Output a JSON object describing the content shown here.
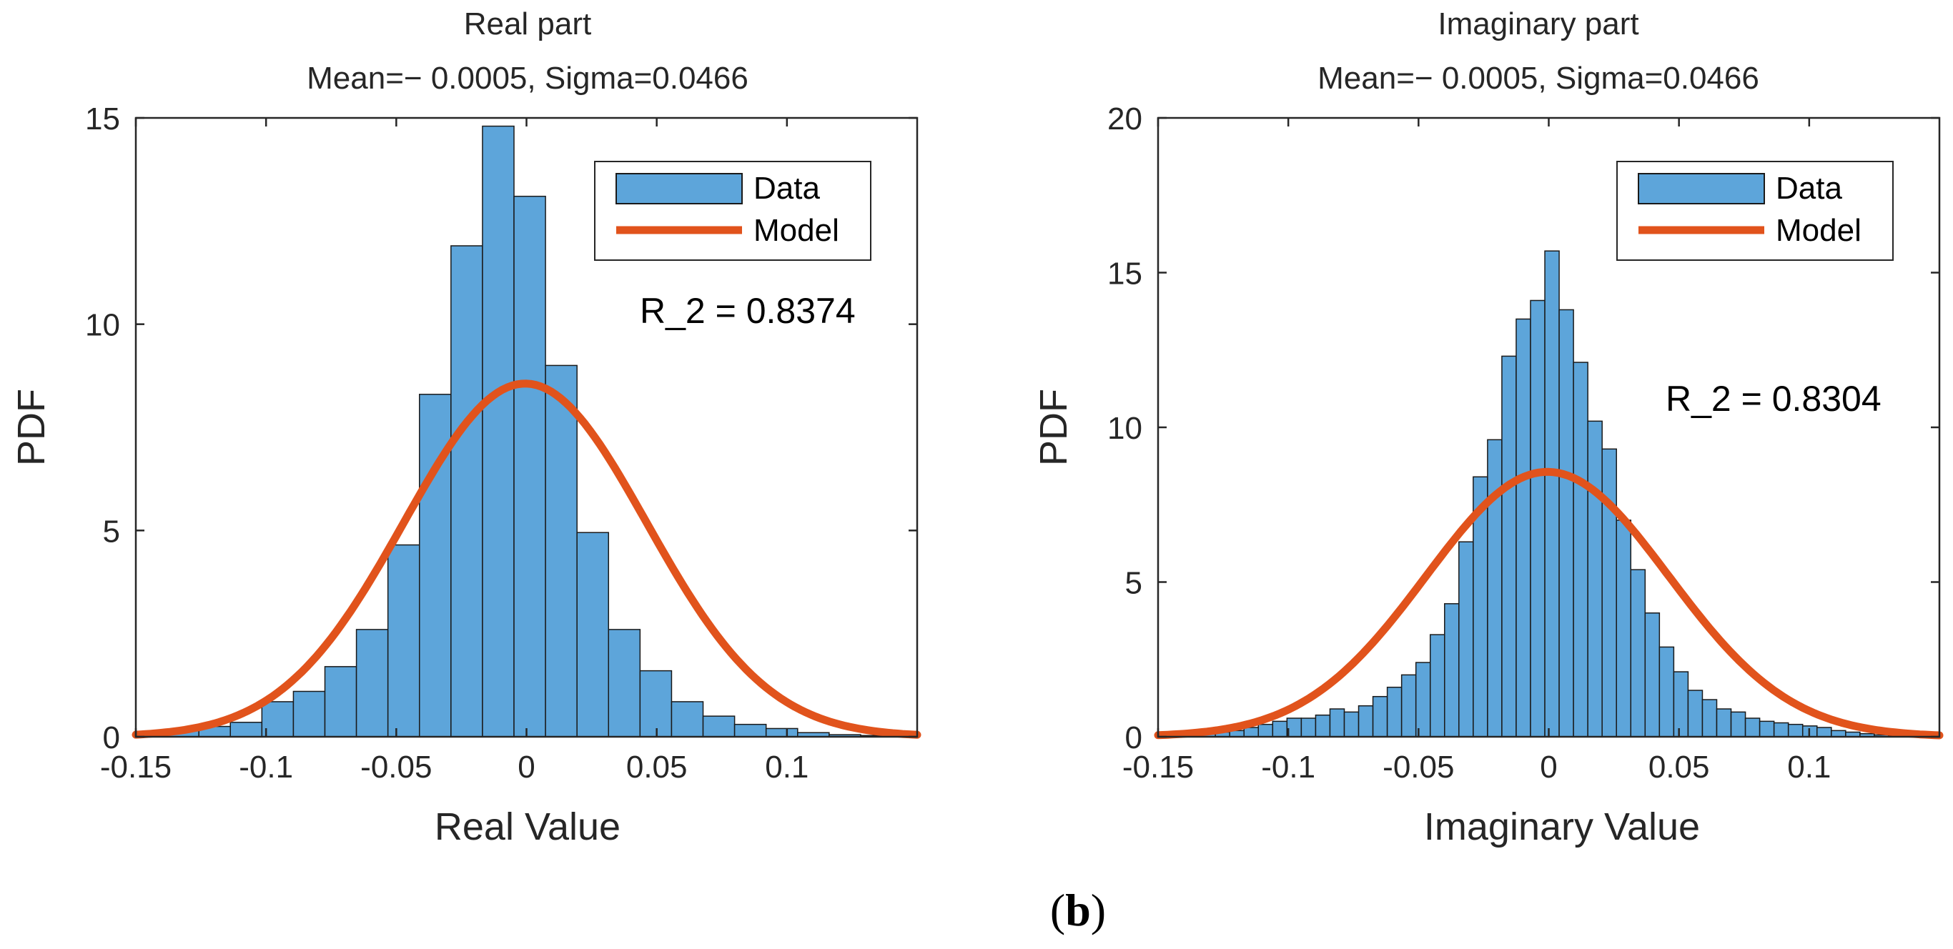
{
  "colors": {
    "bar": "#5DA5DA",
    "barEdge": "#1a1a1a",
    "model": "#E1531C",
    "axis": "#262626"
  },
  "caption": {
    "open": "(",
    "letter": "b",
    "close": ")"
  },
  "chart_data": [
    {
      "type": "bar",
      "title": "Real part",
      "subtitle": "Mean=− 0.0005, Sigma=0.0466",
      "xlabel": "Real Value",
      "ylabel": "PDF",
      "xlim": [
        -0.15,
        0.15
      ],
      "ylim": [
        0,
        15
      ],
      "xticks": [
        -0.15,
        -0.1,
        -0.05,
        0,
        0.05,
        0.1
      ],
      "xtick_labels": [
        "-0.15",
        "-0.1",
        "-0.05",
        "0",
        "0.05",
        "0.1"
      ],
      "yticks": [
        0,
        5,
        10,
        15
      ],
      "ytick_labels": [
        "0",
        "5",
        "10",
        "15"
      ],
      "legend": [
        "Data",
        "Model"
      ],
      "legend_position": "top-right",
      "annotation": "R_2 = 0.8374",
      "bin_edges": [
        -0.15,
        -0.1379,
        -0.1258,
        -0.1137,
        -0.1016,
        -0.0895,
        -0.0774,
        -0.0653,
        -0.0532,
        -0.0411,
        -0.029,
        -0.0169,
        -0.0048,
        0.0073,
        0.0194,
        0.0315,
        0.0436,
        0.0557,
        0.0678,
        0.0799,
        0.092,
        0.1041,
        0.1162,
        0.1283,
        0.1404,
        0.15
      ],
      "values": [
        0.03,
        0.15,
        0.25,
        0.35,
        0.85,
        1.1,
        1.7,
        2.6,
        4.65,
        8.3,
        11.9,
        14.8,
        13.1,
        9.0,
        4.95,
        2.6,
        1.6,
        0.85,
        0.5,
        0.3,
        0.2,
        0.1,
        0.05,
        0.03,
        0.02
      ],
      "model_mean": -0.0005,
      "model_sigma": 0.0466
    },
    {
      "type": "bar",
      "title": "Imaginary part",
      "subtitle": "Mean=− 0.0005, Sigma=0.0466",
      "xlabel": "Imaginary Value",
      "ylabel": "PDF",
      "xlim": [
        -0.15,
        0.15
      ],
      "ylim": [
        0,
        20
      ],
      "xticks": [
        -0.15,
        -0.1,
        -0.05,
        0,
        0.05,
        0.1
      ],
      "xtick_labels": [
        "-0.15",
        "-0.1",
        "-0.05",
        "0",
        "0.05",
        "0.1"
      ],
      "yticks": [
        0,
        5,
        10,
        15,
        20
      ],
      "ytick_labels": [
        "0",
        "5",
        "10",
        "15",
        "20"
      ],
      "legend": [
        "Data",
        "Model"
      ],
      "legend_position": "top-right",
      "annotation": "R_2 = 0.8304",
      "bin_edges": [
        -0.15,
        -0.1445,
        -0.139,
        -0.1335,
        -0.128,
        -0.1225,
        -0.117,
        -0.1115,
        -0.106,
        -0.1005,
        -0.095,
        -0.0895,
        -0.084,
        -0.0785,
        -0.073,
        -0.0675,
        -0.062,
        -0.0565,
        -0.051,
        -0.0455,
        -0.04,
        -0.0345,
        -0.029,
        -0.0235,
        -0.018,
        -0.0125,
        -0.007,
        -0.0015,
        0.004,
        0.0095,
        0.015,
        0.0205,
        0.026,
        0.0315,
        0.037,
        0.0425,
        0.048,
        0.0535,
        0.059,
        0.0645,
        0.07,
        0.0755,
        0.081,
        0.0865,
        0.092,
        0.0975,
        0.103,
        0.1085,
        0.114,
        0.1195,
        0.125,
        0.1305,
        0.136,
        0.1415,
        0.15
      ],
      "values": [
        0.02,
        0.04,
        0.06,
        0.1,
        0.15,
        0.2,
        0.3,
        0.4,
        0.5,
        0.6,
        0.6,
        0.7,
        0.9,
        0.8,
        1.0,
        1.3,
        1.6,
        2.0,
        2.4,
        3.3,
        4.3,
        6.3,
        8.4,
        9.6,
        12.3,
        13.5,
        14.1,
        15.7,
        13.8,
        12.1,
        10.2,
        9.3,
        7.0,
        5.4,
        4.0,
        2.9,
        2.1,
        1.5,
        1.2,
        0.9,
        0.8,
        0.6,
        0.5,
        0.45,
        0.4,
        0.35,
        0.3,
        0.2,
        0.15,
        0.1,
        0.06,
        0.04,
        0.02,
        0.01
      ],
      "model_mean": -0.0005,
      "model_sigma": 0.0466
    }
  ]
}
